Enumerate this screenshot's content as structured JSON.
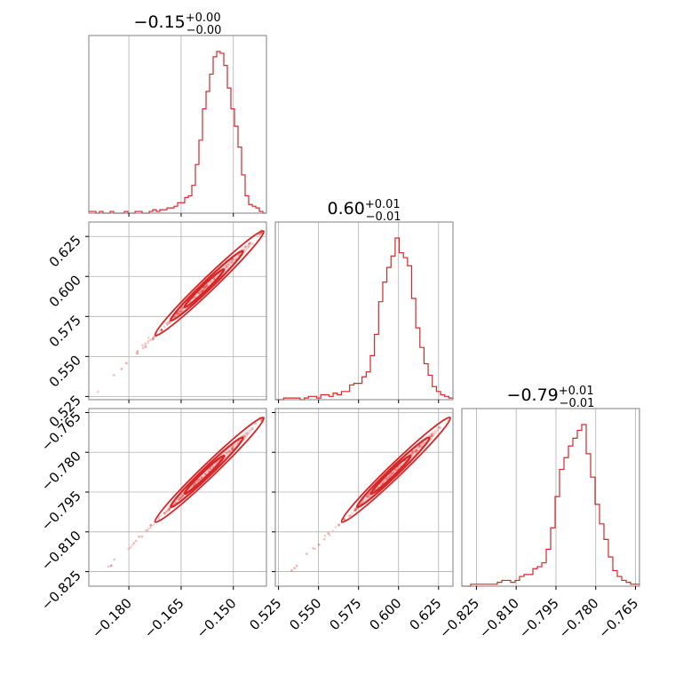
{
  "chart_data": {
    "type": "corner",
    "color": "#d62728",
    "grid": true,
    "parameters": [
      {
        "id": "p0",
        "title": {
          "main": "−0.15",
          "sup": "+0.00",
          "sub": "−0.00"
        },
        "range": [
          -0.1915,
          -0.1405
        ],
        "ticks": [
          -0.18,
          -0.165,
          -0.15
        ],
        "tick_labels": [
          "−0.180",
          "−0.165",
          "−0.150"
        ],
        "hist": {
          "edges": [
            -0.1915,
            -0.1405
          ],
          "counts": [
            1,
            1,
            0,
            1,
            0,
            0,
            1,
            0,
            0,
            0,
            1,
            0,
            0,
            1,
            1,
            0,
            0,
            1,
            2,
            1,
            2,
            2,
            3,
            3,
            4,
            6,
            6,
            9,
            10,
            16,
            28,
            42,
            60,
            70,
            80,
            90,
            93,
            92,
            85,
            72,
            60,
            50,
            38,
            22,
            10,
            5,
            4,
            3,
            1,
            0
          ]
        }
      },
      {
        "id": "p1",
        "title": {
          "main": "0.60",
          "sup": "+0.01",
          "sub": "−0.01"
        },
        "range": [
          0.523,
          0.634
        ],
        "ticks": [
          0.525,
          0.55,
          0.575,
          0.6,
          0.625
        ],
        "tick_labels": [
          "0.525",
          "0.550",
          "0.575",
          "0.600",
          "0.625"
        ],
        "hist": {
          "edges": [
            0.523,
            0.634
          ],
          "counts": [
            0,
            0,
            1,
            1,
            1,
            1,
            0,
            1,
            2,
            2,
            1,
            3,
            3,
            2,
            4,
            3,
            5,
            5,
            9,
            10,
            10,
            14,
            17,
            27,
            40,
            60,
            72,
            81,
            88,
            99,
            90,
            87,
            82,
            62,
            44,
            32,
            22,
            15,
            8,
            5,
            3,
            2,
            1
          ]
        }
      },
      {
        "id": "p2",
        "title": {
          "main": "−0.79",
          "sup": "+0.01",
          "sub": "−0.01"
        },
        "range": [
          -0.8305,
          -0.7635
        ],
        "ticks": [
          -0.825,
          -0.81,
          -0.795,
          -0.78,
          -0.765
        ],
        "tick_labels": [
          "−0.825",
          "−0.810",
          "−0.795",
          "−0.780",
          "−0.765"
        ],
        "hist": {
          "edges": [
            -0.8305,
            -0.7635
          ],
          "counts": [
            0,
            0,
            1,
            1,
            1,
            1,
            1,
            1,
            2,
            3,
            3,
            2,
            3,
            5,
            6,
            6,
            9,
            10,
            12,
            19,
            30,
            46,
            60,
            66,
            72,
            76,
            80,
            83,
            68,
            56,
            42,
            32,
            24,
            15,
            8,
            5,
            3,
            2,
            1,
            1
          ]
        }
      }
    ],
    "scatter_2d": [
      {
        "x": "p0",
        "y": "p1"
      },
      {
        "x": "p0",
        "y": "p2"
      },
      {
        "x": "p1",
        "y": "p2"
      }
    ],
    "y_tick_labels": {
      "p1": [
        "0.525",
        "0.550",
        "0.575",
        "0.600",
        "0.625"
      ],
      "p2": [
        "−0.825",
        "−0.810",
        "−0.795",
        "−0.780",
        "−0.765"
      ]
    }
  }
}
